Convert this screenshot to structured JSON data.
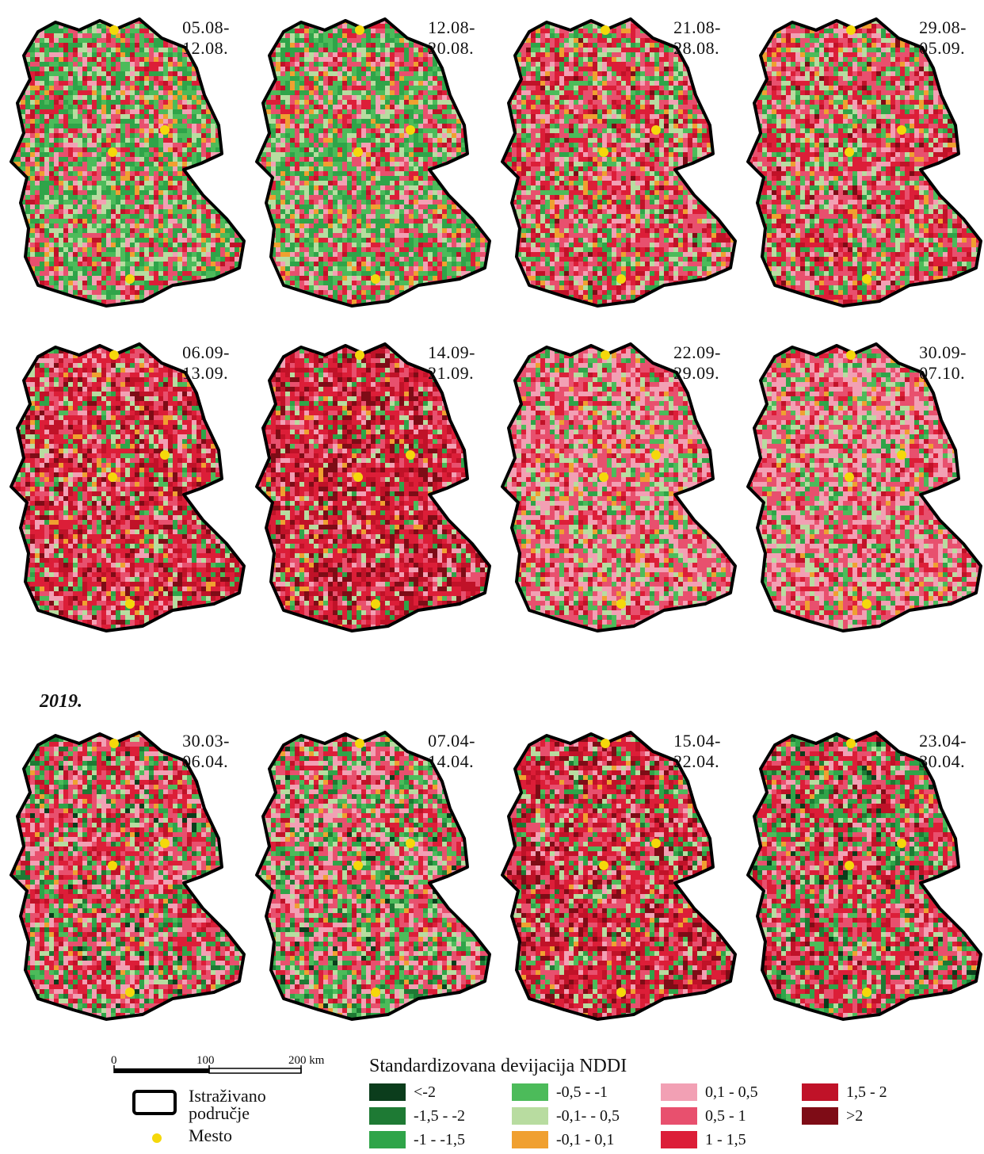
{
  "panels": [
    {
      "date_start": "05.08-",
      "date_end": "12.08.",
      "scheme": "green"
    },
    {
      "date_start": "12.08-",
      "date_end": "20.08.",
      "scheme": "green"
    },
    {
      "date_start": "21.08-",
      "date_end": "28.08.",
      "scheme": "mixed"
    },
    {
      "date_start": "29.08-",
      "date_end": "05.09.",
      "scheme": "mixed"
    },
    {
      "date_start": "06.09-",
      "date_end": "13.09.",
      "scheme": "red"
    },
    {
      "date_start": "14.09-",
      "date_end": "21.09.",
      "scheme": "darkred"
    },
    {
      "date_start": "22.09-",
      "date_end": "29.09.",
      "scheme": "pink"
    },
    {
      "date_start": "30.09-",
      "date_end": "07.10.",
      "scheme": "pink"
    },
    {
      "date_start": "30.03-",
      "date_end": "06.04.",
      "scheme": "spring1"
    },
    {
      "date_start": "07.04-",
      "date_end": "14.04.",
      "scheme": "spring2"
    },
    {
      "date_start": "15.04-",
      "date_end": "22.04.",
      "scheme": "spring3"
    },
    {
      "date_start": "23.04-",
      "date_end": "30.04.",
      "scheme": "spring4"
    }
  ],
  "year_label": "2019.",
  "scale": {
    "label_0": "0",
    "label_100": "100",
    "label_200": "200 km"
  },
  "legend": {
    "title": "Standardizovana devijacija NDDI",
    "study_area": "Istraživano područje",
    "study_area_line1": "Istraživano",
    "study_area_line2": "područje",
    "city": "Mesto",
    "classes": [
      {
        "label": "<-2",
        "color": "#0b3d1c"
      },
      {
        "label": "-1,5 - -2",
        "color": "#1e7a34"
      },
      {
        "label": "-1 - -1,5",
        "color": "#2fa449"
      },
      {
        "label": "-0,5 - -1",
        "color": "#4cbb5a"
      },
      {
        "label": "-0,1- - 0,5",
        "color": "#b8dca0"
      },
      {
        "label": "-0,1 - 0,1",
        "color": "#f0a030"
      },
      {
        "label": "0,1 - 0,5",
        "color": "#f2a0b4"
      },
      {
        "label": "0,5 - 1",
        "color": "#e8506e"
      },
      {
        "label": "1 - 1,5",
        "color": "#dc1e38"
      },
      {
        "label": "1,5 - 2",
        "color": "#c01228"
      },
      {
        "label": ">2",
        "color": "#7e0c16"
      }
    ]
  },
  "colors": {
    "city_marker": "#f5d80a",
    "outline": "#000000"
  }
}
